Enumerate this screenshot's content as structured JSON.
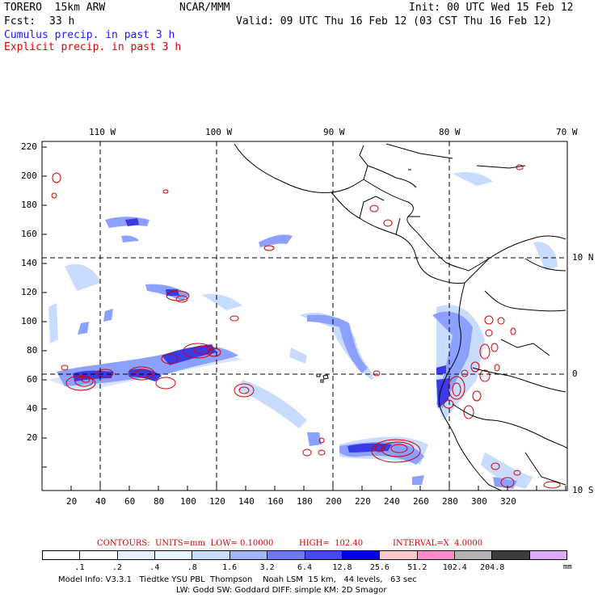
{
  "header": {
    "model": "TORERO  15km ARW",
    "org": "NCAR/MMM",
    "init": "Init: 00 UTC Wed 15 Feb 12",
    "fcst_label": "Fcst:",
    "fcst_value": "33 h",
    "valid": "Valid: 09 UTC Thu 16 Feb 12 (03 CST Thu 16 Feb 12)",
    "legend_cumulus": "Cumulus precip. in past 3 h",
    "legend_explicit": "Explicit precip. in past 3 h"
  },
  "colors": {
    "cumulus_text": "#1a1aff",
    "explicit_text": "#e00000",
    "contour_red": "#d40000",
    "contour_info": "#d40000",
    "precip_light": "#c8dcff",
    "precip_mid": "#8ca0ff",
    "precip_heavy": "#3a3ae6"
  },
  "map": {
    "lon_labels": [
      "110 W",
      "100 W",
      "90 W",
      "80 W",
      "70 W"
    ],
    "lat_labels": [
      "10 N",
      "0",
      "10 S"
    ],
    "x_ticks": [
      "20",
      "40",
      "60",
      "80",
      "100",
      "120",
      "140",
      "160",
      "180",
      "200",
      "220",
      "240",
      "260",
      "280",
      "300",
      "320"
    ],
    "y_ticks": [
      "220",
      "200",
      "180",
      "160",
      "140",
      "120",
      "100",
      "80",
      "60",
      "40",
      "20"
    ]
  },
  "contour_info": {
    "units": "CONTOURS:  UNITS=mm  LOW= 0.10000",
    "high": "HIGH=  102.40",
    "interval": "INTERVAL=X  4.0000"
  },
  "colorbar": {
    "labels": [
      ".1",
      ".2",
      ".4",
      ".8",
      "1.6",
      "3.2",
      "6.4",
      "12.8",
      "25.6",
      "51.2",
      "102.4",
      "204.8"
    ],
    "unit": "mm",
    "colors": [
      "#ffffff",
      "#ffffff",
      "#e6f0ff",
      "#e6f6ff",
      "#c8dcff",
      "#a0b4ff",
      "#6e78ff",
      "#4646ff",
      "#0000e6",
      "#ffc8c8",
      "#ff8cc8",
      "#b4b4b4",
      "#3c3c3c",
      "#dcaaff"
    ]
  },
  "footer": {
    "line1": "Model Info: V3.3.1   Tiedtke YSU PBL  Thompson    Noah LSM  15 km,   44 levels,   63 sec",
    "line2": "LW: Godd SW: Goddard DIFF: simple KM: 2D Smagor"
  }
}
